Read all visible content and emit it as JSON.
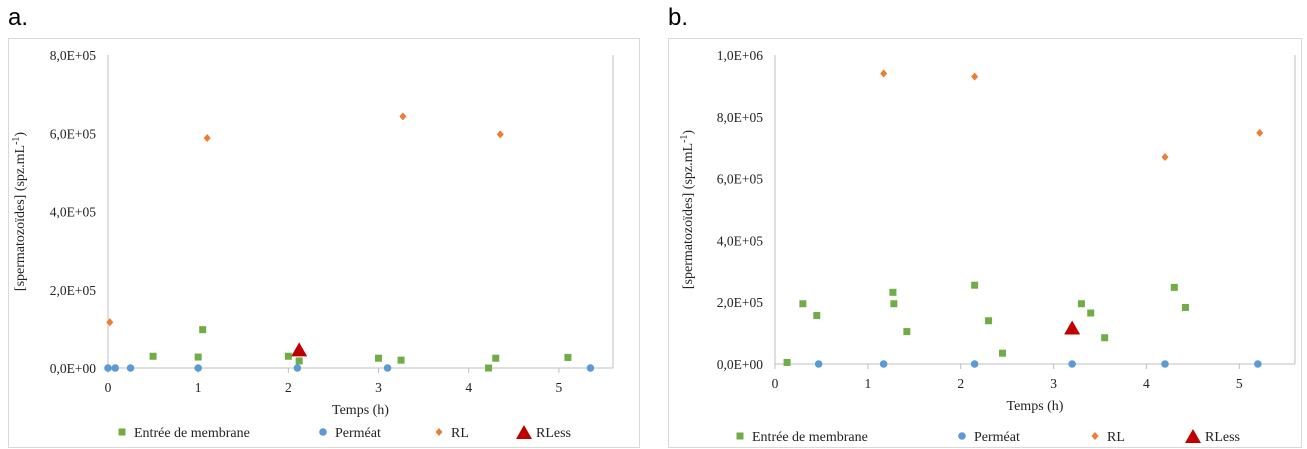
{
  "panels": [
    {
      "label": "a."
    },
    {
      "label": "b."
    }
  ],
  "legend": [
    "Entrée de membrane",
    "Perméat",
    "RL",
    "RLess"
  ],
  "colors": {
    "entree": "#70ad47",
    "permeat": "#5b9bd5",
    "rl": "#ed7d31",
    "rless": "#c00000"
  },
  "chart_data": [
    {
      "type": "scatter",
      "title": "",
      "xlabel": "Temps (h)",
      "ylabel": "[spermatozoïdes] (spz.mL-1)",
      "xlim": [
        0,
        5.6
      ],
      "ylim": [
        0,
        800000
      ],
      "xticks": [
        "0",
        "1",
        "2",
        "3",
        "4",
        "5"
      ],
      "yticks": [
        "0,0E+00",
        "2,0E+05",
        "4,0E+05",
        "6,0E+05",
        "8,0E+05"
      ],
      "series": [
        {
          "name": "Entrée de membrane",
          "marker": "square",
          "x": [
            0.5,
            1.0,
            1.05,
            2.0,
            2.12,
            3.0,
            3.25,
            4.22,
            4.3,
            5.1
          ],
          "y": [
            30000,
            28000,
            98000,
            30000,
            18000,
            25000,
            20000,
            0,
            25000,
            27000
          ]
        },
        {
          "name": "Perméat",
          "marker": "circle",
          "x": [
            0.0,
            0.08,
            0.25,
            1.0,
            2.1,
            3.1,
            5.35
          ],
          "y": [
            0,
            0,
            0,
            0,
            0,
            0,
            0
          ]
        },
        {
          "name": "RL",
          "marker": "diamond",
          "x": [
            0.02,
            1.1,
            3.27,
            4.35
          ],
          "y": [
            117000,
            588000,
            643000,
            597000
          ]
        },
        {
          "name": "RLess",
          "marker": "triangle",
          "x": [
            2.12
          ],
          "y": [
            45000
          ]
        }
      ]
    },
    {
      "type": "scatter",
      "title": "",
      "xlabel": "Temps (h)",
      "ylabel": "[spermatozoïdes] (spz.mL-1)",
      "xlim": [
        0,
        5.6
      ],
      "ylim": [
        0,
        1000000
      ],
      "xticks": [
        "0",
        "1",
        "2",
        "3",
        "4",
        "5"
      ],
      "yticks": [
        "0,0E+00",
        "2,0E+05",
        "4,0E+05",
        "6,0E+05",
        "8,0E+05",
        "1,0E+06"
      ],
      "series": [
        {
          "name": "Entrée de membrane",
          "marker": "square",
          "x": [
            0.13,
            0.3,
            0.45,
            1.27,
            1.28,
            1.42,
            2.15,
            2.3,
            2.45,
            3.3,
            3.4,
            3.55,
            4.3,
            4.42
          ],
          "y": [
            5000,
            195000,
            157000,
            232000,
            195000,
            105000,
            255000,
            140000,
            35000,
            195000,
            165000,
            85000,
            248000,
            183000
          ]
        },
        {
          "name": "Perméat",
          "marker": "circle",
          "x": [
            0.47,
            1.17,
            2.15,
            3.2,
            4.2,
            5.2
          ],
          "y": [
            0,
            0,
            0,
            0,
            0,
            0
          ]
        },
        {
          "name": "RL",
          "marker": "diamond",
          "x": [
            1.17,
            2.15,
            4.2,
            5.22
          ],
          "y": [
            940000,
            930000,
            670000,
            748000
          ]
        },
        {
          "name": "RLess",
          "marker": "triangle",
          "x": [
            3.2
          ],
          "y": [
            115000
          ]
        }
      ]
    }
  ]
}
